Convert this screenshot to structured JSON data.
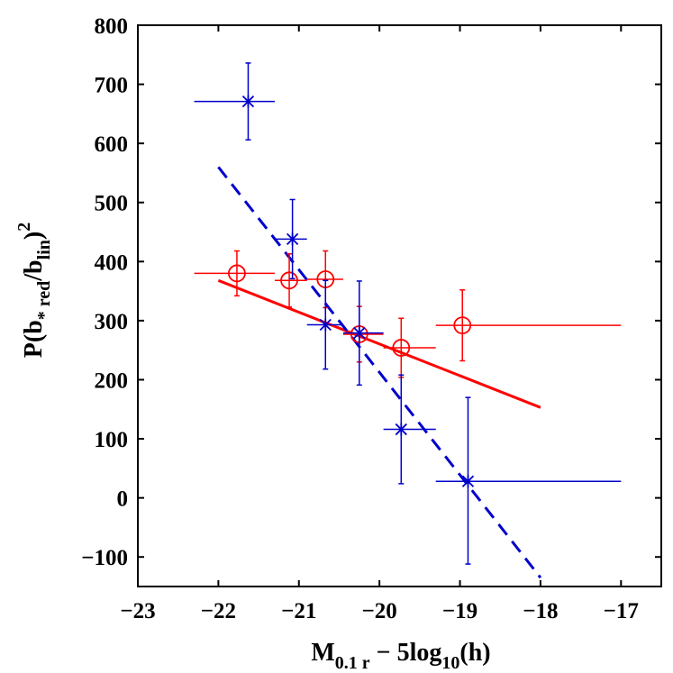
{
  "chart_data": {
    "type": "scatter",
    "title": "",
    "xlabel": {
      "pre": "M",
      "sub1": "0.1 r",
      "mid": " − 5log",
      "sub2": "10",
      "post": "(h)"
    },
    "ylabel": {
      "pre": "P(b",
      "sub1": "* red",
      "mid": "/b",
      "sub2": "lin",
      "post": ")",
      "sup": "2"
    },
    "xlim": [
      -23,
      -16.5
    ],
    "ylim": [
      -150,
      800
    ],
    "xticks": [
      -23,
      -22,
      -21,
      -20,
      -19,
      -18,
      -17
    ],
    "xtick_labels": [
      "−23",
      "−22",
      "−21",
      "−20",
      "−19",
      "−18",
      "−17"
    ],
    "yticks": [
      800,
      700,
      600,
      500,
      400,
      300,
      200,
      100,
      0,
      -100
    ],
    "ytick_labels": [
      "800",
      "700",
      "600",
      "500",
      "400",
      "300",
      "200",
      "100",
      "0",
      "−100"
    ],
    "grid": false,
    "series": [
      {
        "name": "red circles",
        "color": "#ff0000",
        "marker": "circle",
        "points": [
          {
            "x": -21.77,
            "y": 380,
            "xmin": -22.3,
            "xmax": -21.3,
            "yerr_low": 38,
            "yerr_high": 38
          },
          {
            "x": -21.12,
            "y": 368,
            "xmin": -21.3,
            "xmax": -20.9,
            "yerr_low": 45,
            "yerr_high": 45
          },
          {
            "x": -20.67,
            "y": 370,
            "xmin": -20.9,
            "xmax": -20.45,
            "yerr_low": 48,
            "yerr_high": 48
          },
          {
            "x": -20.25,
            "y": 277,
            "xmin": -20.45,
            "xmax": -19.95,
            "yerr_low": 47,
            "yerr_high": 47
          },
          {
            "x": -19.73,
            "y": 254,
            "xmin": -19.95,
            "xmax": -19.3,
            "yerr_low": 50,
            "yerr_high": 50
          },
          {
            "x": -18.97,
            "y": 292,
            "xmin": -19.3,
            "xmax": -17.0,
            "yerr_low": 60,
            "yerr_high": 60
          }
        ]
      },
      {
        "name": "blue crosses",
        "color": "#0000cc",
        "marker": "asterisk",
        "points": [
          {
            "x": -21.63,
            "y": 671,
            "xmin": -22.3,
            "xmax": -21.3,
            "yerr_low": 65,
            "yerr_high": 65
          },
          {
            "x": -21.08,
            "y": 438,
            "xmin": -21.3,
            "xmax": -20.9,
            "yerr_low": 67,
            "yerr_high": 67
          },
          {
            "x": -20.67,
            "y": 293,
            "xmin": -20.9,
            "xmax": -20.45,
            "yerr_low": 75,
            "yerr_high": 75
          },
          {
            "x": -20.25,
            "y": 279,
            "xmin": -20.45,
            "xmax": -19.95,
            "yerr_low": 88,
            "yerr_high": 88
          },
          {
            "x": -19.73,
            "y": 116,
            "xmin": -19.95,
            "xmax": -19.3,
            "yerr_low": 92,
            "yerr_high": 92
          },
          {
            "x": -18.9,
            "y": 28,
            "xmin": -19.3,
            "xmax": -17.0,
            "yerr_low": 140,
            "yerr_high": 142
          }
        ]
      }
    ],
    "fit_lines": [
      {
        "name": "red linear fit",
        "color": "#ff0000",
        "style": "solid",
        "x": [
          -22.0,
          -18.0
        ],
        "y": [
          368,
          153
        ]
      },
      {
        "name": "blue linear fit",
        "color": "#0000cc",
        "style": "dashed",
        "x": [
          -22.0,
          -18.0
        ],
        "y": [
          560,
          -135
        ]
      }
    ]
  }
}
